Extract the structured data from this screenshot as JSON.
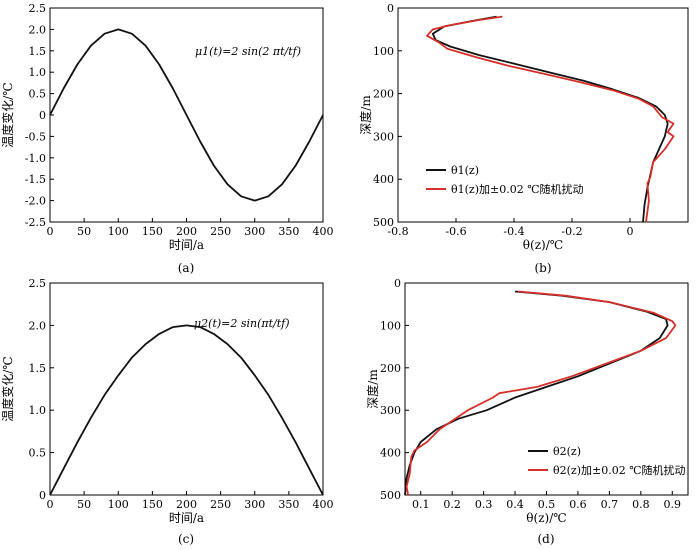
{
  "chart_data": [
    {
      "panel": "(a)",
      "type": "line",
      "xlabel": "时间/a",
      "ylabel": "温度变化/℃",
      "xlim": [
        0,
        400
      ],
      "ylim": [
        -2.5,
        2.5
      ],
      "xticks": [
        "0",
        "50",
        "100",
        "150",
        "200",
        "250",
        "300",
        "350",
        "400"
      ],
      "yticks": [
        "2.5",
        "2.0",
        "1.5",
        "1.0",
        "0.5",
        "0",
        "-0.5",
        "-1.0",
        "-1.5",
        "-2.0",
        "-2.5"
      ],
      "annotation": "μ1(t)=2 sin(2 πt/tf)",
      "series": [
        {
          "x": [
            0,
            20,
            40,
            60,
            80,
            100,
            120,
            140,
            160,
            180,
            200,
            220,
            240,
            260,
            280,
            300,
            320,
            340,
            360,
            380,
            400
          ],
          "y": [
            0,
            0.62,
            1.18,
            1.62,
            1.9,
            2.0,
            1.9,
            1.62,
            1.18,
            0.62,
            0,
            -0.62,
            -1.18,
            -1.62,
            -1.9,
            -2.0,
            -1.9,
            -1.62,
            -1.18,
            -0.62,
            0
          ],
          "color": "#111111"
        }
      ]
    },
    {
      "panel": "(b)",
      "type": "line",
      "xlabel": "θ(z)/℃",
      "ylabel": "深度/m",
      "xlim": [
        -0.8,
        0.2
      ],
      "ylim": [
        0,
        500
      ],
      "yinverted": true,
      "xticks": [
        "-0.8",
        "-0.6",
        "-0.4",
        "-0.2",
        "0"
      ],
      "yticks": [
        "0",
        "100",
        "200",
        "300",
        "400",
        "500"
      ],
      "legend": [
        "θ1(z)",
        "θ1(z)加±0.02 ℃随机扰动"
      ],
      "legend_position": "bottom-right",
      "series": [
        {
          "name": "θ1(z)",
          "color": "#111111",
          "x": [
            -0.46,
            -0.54,
            -0.64,
            -0.68,
            -0.67,
            -0.62,
            -0.52,
            -0.4,
            -0.28,
            -0.16,
            -0.06,
            0.03,
            0.09,
            0.12,
            0.13,
            0.12,
            0.1,
            0.08,
            0.07,
            0.06,
            0.05,
            0.045
          ],
          "y": [
            20,
            30,
            43,
            60,
            75,
            90,
            110,
            130,
            150,
            170,
            190,
            210,
            230,
            250,
            270,
            300,
            330,
            360,
            390,
            420,
            460,
            500
          ]
        },
        {
          "name": "θ1(z)加±0.02 ℃随机扰动",
          "color": "#d62f2a",
          "x": [
            -0.44,
            -0.52,
            -0.62,
            -0.68,
            -0.7,
            -0.66,
            -0.63,
            -0.53,
            -0.42,
            -0.29,
            -0.18,
            -0.06,
            0.03,
            0.08,
            0.11,
            0.15,
            0.13,
            0.15,
            0.12,
            0.08,
            0.07,
            0.06,
            0.065,
            0.055
          ],
          "y": [
            20,
            28,
            40,
            50,
            65,
            80,
            95,
            115,
            135,
            155,
            172,
            192,
            212,
            230,
            255,
            270,
            290,
            300,
            330,
            360,
            395,
            410,
            450,
            500
          ]
        }
      ]
    },
    {
      "panel": "(c)",
      "type": "line",
      "xlabel": "时间/a",
      "ylabel": "温度变化/℃",
      "xlim": [
        0,
        400
      ],
      "ylim": [
        0,
        2.5
      ],
      "xticks": [
        "0",
        "50",
        "100",
        "150",
        "200",
        "250",
        "300",
        "350",
        "400"
      ],
      "yticks": [
        "0",
        "0.5",
        "1.0",
        "1.5",
        "2.0",
        "2.5"
      ],
      "annotation": "μ2(t)=2 sin(πt/tf)",
      "series": [
        {
          "x": [
            0,
            20,
            40,
            60,
            80,
            100,
            120,
            140,
            160,
            180,
            200,
            220,
            240,
            260,
            280,
            300,
            320,
            340,
            360,
            380,
            400
          ],
          "y": [
            0,
            0.31,
            0.62,
            0.91,
            1.18,
            1.41,
            1.62,
            1.78,
            1.9,
            1.98,
            2.0,
            1.98,
            1.9,
            1.78,
            1.62,
            1.41,
            1.18,
            0.91,
            0.62,
            0.31,
            0
          ],
          "color": "#111111"
        }
      ]
    },
    {
      "panel": "(d)",
      "type": "line",
      "xlabel": "θ(z)/℃",
      "ylabel": "深度/m",
      "xlim": [
        0.05,
        0.95
      ],
      "ylim": [
        0,
        500
      ],
      "yinverted": true,
      "xticks": [
        "0.1",
        "0.2",
        "0.3",
        "0.4",
        "0.5",
        "0.6",
        "0.7",
        "0.8",
        "0.9"
      ],
      "yticks": [
        "0",
        "100",
        "200",
        "300",
        "400",
        "500"
      ],
      "legend": [
        "θ2(z)",
        "θ2(z)加±0.02 ℃随机扰动"
      ],
      "legend_position": "bottom-right",
      "series": [
        {
          "name": "θ2(z)",
          "color": "#111111",
          "x": [
            0.4,
            0.55,
            0.7,
            0.82,
            0.88,
            0.885,
            0.86,
            0.8,
            0.7,
            0.6,
            0.5,
            0.4,
            0.31,
            0.22,
            0.15,
            0.1,
            0.08,
            0.065,
            0.055,
            0.05
          ],
          "y": [
            20,
            30,
            45,
            68,
            85,
            100,
            130,
            160,
            190,
            220,
            245,
            270,
            300,
            320,
            345,
            375,
            400,
            430,
            460,
            500
          ]
        },
        {
          "name": "θ2(z)加±0.02 ℃随机扰动",
          "color": "#d62f2a",
          "x": [
            0.41,
            0.56,
            0.7,
            0.84,
            0.9,
            0.91,
            0.88,
            0.8,
            0.69,
            0.58,
            0.47,
            0.35,
            0.33,
            0.25,
            0.16,
            0.12,
            0.08,
            0.07,
            0.065,
            0.055,
            0.06
          ],
          "y": [
            20,
            30,
            45,
            70,
            90,
            100,
            130,
            160,
            190,
            220,
            245,
            260,
            270,
            300,
            345,
            375,
            395,
            410,
            450,
            480,
            500
          ]
        }
      ]
    }
  ],
  "captions": [
    "(a)",
    "(b)",
    "(c)",
    "(d)"
  ]
}
